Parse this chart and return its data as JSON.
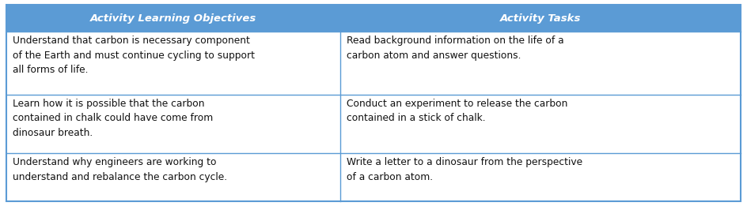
{
  "header": [
    "Activity Learning Objectives",
    "Activity Tasks"
  ],
  "header_bg_color": "#5B9BD5",
  "header_text_color": "#FFFFFF",
  "cell_bg_color": "#FFFFFF",
  "border_color": "#5B9BD5",
  "rows": [
    [
      "Understand that carbon is necessary component\nof the Earth and must continue cycling to support\nall forms of life.",
      "Read background information on the life of a\ncarbon atom and answer questions."
    ],
    [
      "Learn how it is possible that the carbon\ncontained in chalk could have come from\ndinosaur breath.",
      "Conduct an experiment to release the carbon\ncontained in a stick of chalk."
    ],
    [
      "Understand why engineers are working to\nunderstand and rebalance the carbon cycle.",
      "Write a letter to a dinosaur from the perspective\nof a carbon atom."
    ]
  ],
  "col_split": 0.455,
  "header_fontsize": 9.5,
  "cell_fontsize": 8.8,
  "outer_border_lw": 1.5,
  "inner_border_lw": 1.0,
  "fig_width": 9.44,
  "fig_height": 2.61,
  "dpi": 100
}
